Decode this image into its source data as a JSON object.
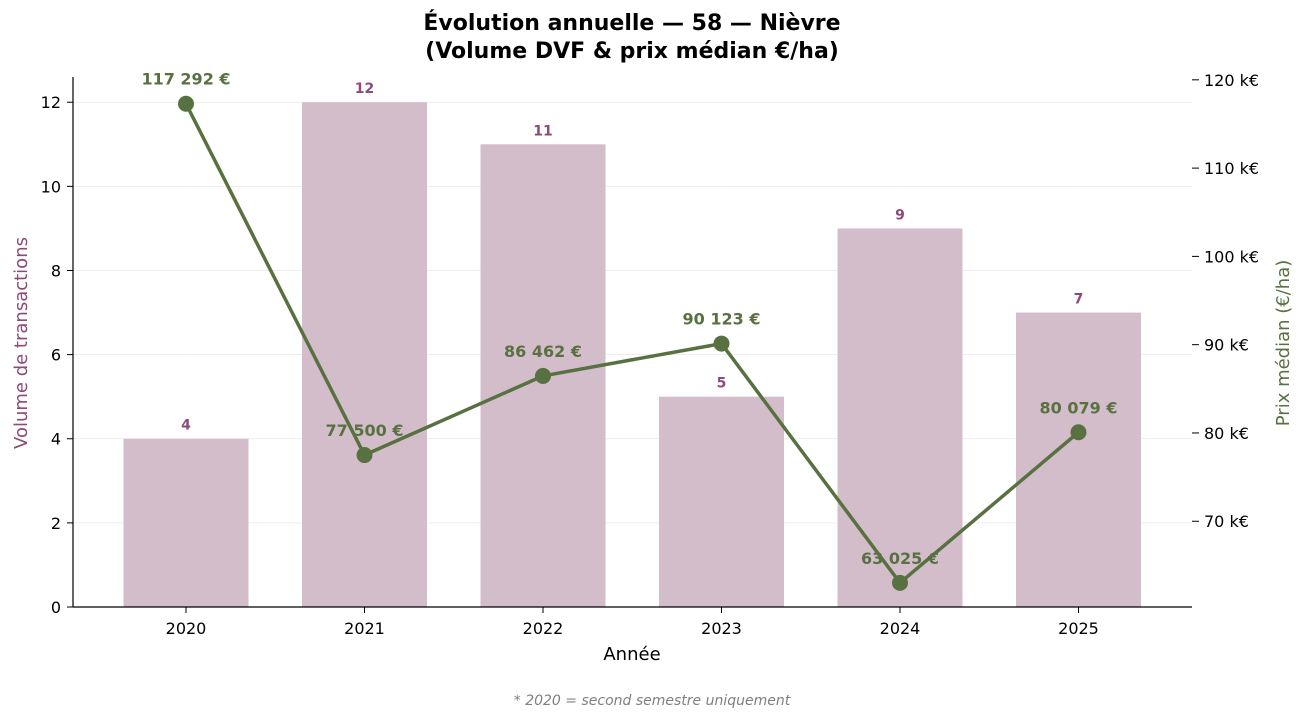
{
  "chart_data": {
    "type": "bar+line",
    "title_line1": "Évolution annuelle — 58 — Nièvre",
    "title_line2": "(Volume DVF & prix médian €/ha)",
    "xlabel": "Année",
    "ylabel_left": "Volume de transactions",
    "ylabel_right": "Prix médian (€/ha)",
    "categories": [
      "2020",
      "2021",
      "2022",
      "2023",
      "2024",
      "2025"
    ],
    "bar_series": {
      "values": [
        4,
        12,
        11,
        5,
        9,
        7
      ],
      "labels": [
        "4",
        "12",
        "11",
        "5",
        "9",
        "7"
      ],
      "color": "#d4bdcb",
      "label_color": "#8b4a78"
    },
    "line_series": {
      "values": [
        117292,
        77500,
        86462,
        90123,
        63025,
        80079
      ],
      "labels": [
        "117 292 €",
        "77 500 €",
        "86 462 €",
        "90 123 €",
        "63 025 €",
        "80 079 €"
      ],
      "color": "#587141"
    },
    "ylim_left": [
      0,
      12.6
    ],
    "yticks_left": [
      "0",
      "2",
      "4",
      "6",
      "8",
      "10",
      "12"
    ],
    "ylim_right": [
      60287,
      120320
    ],
    "yticks_right": [
      "70 k€",
      "80 k€",
      "90 k€",
      "100 k€",
      "110 k€",
      "120 k€"
    ],
    "ytick_values_right": [
      70000,
      80000,
      90000,
      100000,
      110000,
      120000
    ],
    "grid": true,
    "footnote": "* 2020 = second semestre uniquement"
  }
}
